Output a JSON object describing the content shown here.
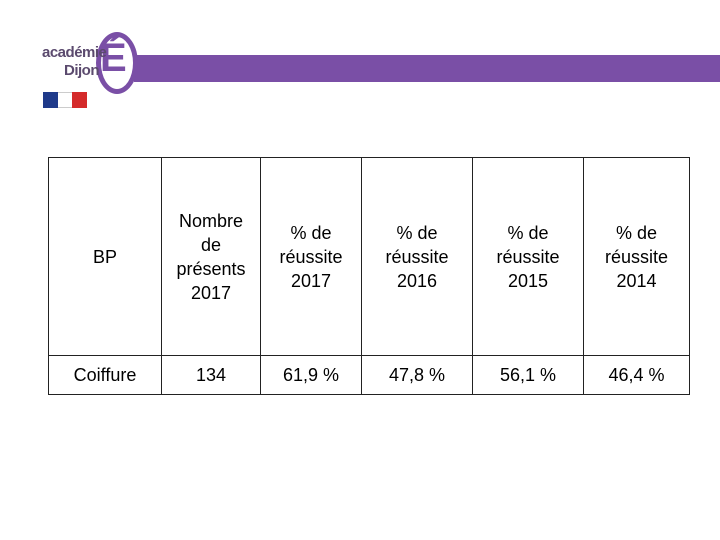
{
  "logo": {
    "line1": "académie",
    "line2": "Dijon",
    "letter": "É"
  },
  "table": {
    "header": [
      [
        "BP"
      ],
      [
        "Nombre",
        "de",
        "présents",
        "2017"
      ],
      [
        "% de",
        "réussite",
        "2017"
      ],
      [
        "% de",
        "réussite",
        "2016"
      ],
      [
        "% de",
        "réussite",
        "2015"
      ],
      [
        "% de",
        "réussite",
        "2014"
      ]
    ],
    "rows": [
      [
        "Coiffure",
        "134",
        "61,9 %",
        "47,8 %",
        "56,1 %",
        "46,4 %"
      ]
    ]
  }
}
